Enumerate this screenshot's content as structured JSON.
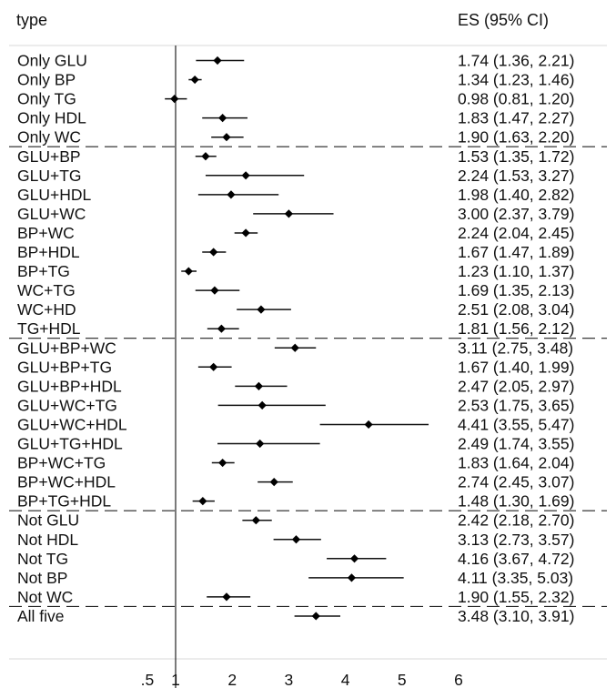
{
  "chart_data": {
    "type": "forest",
    "header_left": "type",
    "header_right": "ES (95% CI)",
    "x_ticks": [
      {
        "value": 0.5,
        "label": ".5"
      },
      {
        "value": 1,
        "label": "1"
      },
      {
        "value": 2,
        "label": "2"
      },
      {
        "value": 3,
        "label": "3"
      },
      {
        "value": 4,
        "label": "4"
      },
      {
        "value": 5,
        "label": "5"
      },
      {
        "value": 6,
        "label": "6"
      }
    ],
    "reference_value": 1,
    "groups": [
      {
        "rows": [
          {
            "label": "Only GLU",
            "es": 1.74,
            "lo": 1.36,
            "hi": 2.21,
            "ci_text": "1.74 (1.36, 2.21)"
          },
          {
            "label": "Only BP",
            "es": 1.34,
            "lo": 1.23,
            "hi": 1.46,
            "ci_text": "1.34 (1.23, 1.46)"
          },
          {
            "label": "Only TG",
            "es": 0.98,
            "lo": 0.81,
            "hi": 1.2,
            "ci_text": "0.98 (0.81, 1.20)"
          },
          {
            "label": "Only HDL",
            "es": 1.83,
            "lo": 1.47,
            "hi": 2.27,
            "ci_text": "1.83 (1.47, 2.27)"
          },
          {
            "label": "Only WC",
            "es": 1.9,
            "lo": 1.63,
            "hi": 2.2,
            "ci_text": "1.90 (1.63, 2.20)"
          }
        ]
      },
      {
        "rows": [
          {
            "label": "GLU+BP",
            "es": 1.53,
            "lo": 1.35,
            "hi": 1.72,
            "ci_text": "1.53 (1.35, 1.72)"
          },
          {
            "label": "GLU+TG",
            "es": 2.24,
            "lo": 1.53,
            "hi": 3.27,
            "ci_text": "2.24 (1.53, 3.27)"
          },
          {
            "label": "GLU+HDL",
            "es": 1.98,
            "lo": 1.4,
            "hi": 2.82,
            "ci_text": "1.98 (1.40, 2.82)"
          },
          {
            "label": "GLU+WC",
            "es": 3.0,
            "lo": 2.37,
            "hi": 3.79,
            "ci_text": "3.00 (2.37, 3.79)"
          },
          {
            "label": "BP+WC",
            "es": 2.24,
            "lo": 2.04,
            "hi": 2.45,
            "ci_text": "2.24 (2.04, 2.45)"
          },
          {
            "label": "BP+HDL",
            "es": 1.67,
            "lo": 1.47,
            "hi": 1.89,
            "ci_text": "1.67 (1.47, 1.89)"
          },
          {
            "label": "BP+TG",
            "es": 1.23,
            "lo": 1.1,
            "hi": 1.37,
            "ci_text": "1.23 (1.10, 1.37)"
          },
          {
            "label": "WC+TG",
            "es": 1.69,
            "lo": 1.35,
            "hi": 2.13,
            "ci_text": "1.69 (1.35, 2.13)"
          },
          {
            "label": "WC+HD",
            "es": 2.51,
            "lo": 2.08,
            "hi": 3.04,
            "ci_text": "2.51 (2.08, 3.04)"
          },
          {
            "label": "TG+HDL",
            "es": 1.81,
            "lo": 1.56,
            "hi": 2.12,
            "ci_text": "1.81 (1.56, 2.12)"
          }
        ]
      },
      {
        "rows": [
          {
            "label": "GLU+BP+WC",
            "es": 3.11,
            "lo": 2.75,
            "hi": 3.48,
            "ci_text": "3.11 (2.75, 3.48)"
          },
          {
            "label": "GLU+BP+TG",
            "es": 1.67,
            "lo": 1.4,
            "hi": 1.99,
            "ci_text": "1.67 (1.40, 1.99)"
          },
          {
            "label": "GLU+BP+HDL",
            "es": 2.47,
            "lo": 2.05,
            "hi": 2.97,
            "ci_text": "2.47 (2.05, 2.97)"
          },
          {
            "label": "GLU+WC+TG",
            "es": 2.53,
            "lo": 1.75,
            "hi": 3.65,
            "ci_text": "2.53 (1.75, 3.65)"
          },
          {
            "label": "GLU+WC+HDL",
            "es": 4.41,
            "lo": 3.55,
            "hi": 5.47,
            "ci_text": "4.41 (3.55, 5.47)"
          },
          {
            "label": "GLU+TG+HDL",
            "es": 2.49,
            "lo": 1.74,
            "hi": 3.55,
            "ci_text": "2.49 (1.74, 3.55)"
          },
          {
            "label": "BP+WC+TG",
            "es": 1.83,
            "lo": 1.64,
            "hi": 2.04,
            "ci_text": "1.83 (1.64, 2.04)"
          },
          {
            "label": "BP+WC+HDL",
            "es": 2.74,
            "lo": 2.45,
            "hi": 3.07,
            "ci_text": "2.74 (2.45, 3.07)"
          },
          {
            "label": "BP+TG+HDL",
            "es": 1.48,
            "lo": 1.3,
            "hi": 1.69,
            "ci_text": "1.48 (1.30, 1.69)"
          }
        ]
      },
      {
        "rows": [
          {
            "label": "Not GLU",
            "es": 2.42,
            "lo": 2.18,
            "hi": 2.7,
            "ci_text": "2.42 (2.18, 2.70)"
          },
          {
            "label": "Not HDL",
            "es": 3.13,
            "lo": 2.73,
            "hi": 3.57,
            "ci_text": "3.13 (2.73, 3.57)"
          },
          {
            "label": "Not TG",
            "es": 4.16,
            "lo": 3.67,
            "hi": 4.72,
            "ci_text": "4.16 (3.67, 4.72)"
          },
          {
            "label": "Not BP",
            "es": 4.11,
            "lo": 3.35,
            "hi": 5.03,
            "ci_text": "4.11 (3.35, 5.03)"
          },
          {
            "label": "Not WC",
            "es": 1.9,
            "lo": 1.55,
            "hi": 2.32,
            "ci_text": "1.90 (1.55, 2.32)"
          }
        ]
      },
      {
        "rows": [
          {
            "label": "All five",
            "es": 3.48,
            "lo": 3.1,
            "hi": 3.91,
            "ci_text": "3.48 (3.10, 3.91)"
          }
        ]
      }
    ]
  }
}
